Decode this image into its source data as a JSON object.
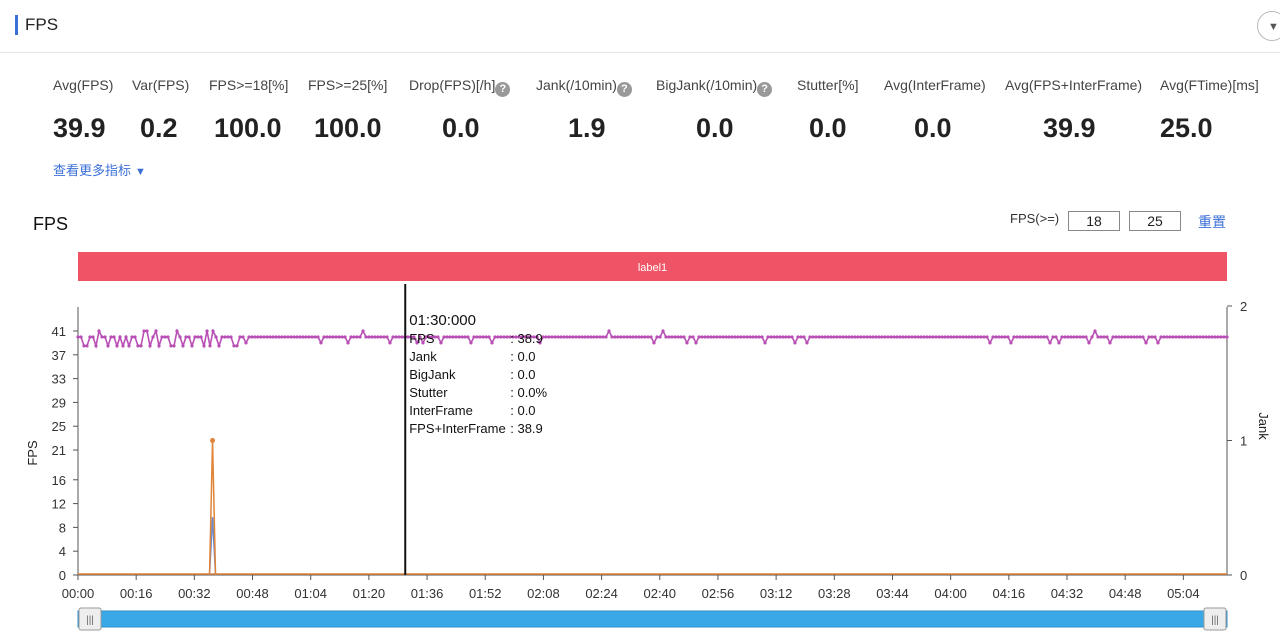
{
  "header": {
    "title": "FPS"
  },
  "metrics": [
    {
      "label": "Avg(FPS)",
      "value": "39.9",
      "help": false
    },
    {
      "label": "Var(FPS)",
      "value": "0.2",
      "help": false
    },
    {
      "label": "FPS>=18[%]",
      "value": "100.0",
      "help": false
    },
    {
      "label": "FPS>=25[%]",
      "value": "100.0",
      "help": false
    },
    {
      "label": "Drop(FPS)[/h]",
      "value": "0.0",
      "help": true
    },
    {
      "label": "Jank(/10min)",
      "value": "1.9",
      "help": true
    },
    {
      "label": "BigJank(/10min)",
      "value": "0.0",
      "help": true
    },
    {
      "label": "Stutter[%]",
      "value": "0.0",
      "help": false
    },
    {
      "label": "Avg(InterFrame)",
      "value": "0.0",
      "help": false
    },
    {
      "label": "Avg(FPS+InterFrame)",
      "value": "39.9",
      "help": false
    },
    {
      "label": "Avg(FTime)[ms]",
      "value": "25.0",
      "help": false
    }
  ],
  "more_metrics_label": "查看更多指标",
  "chart_section": {
    "title": "FPS",
    "threshold_label": "FPS(>=)",
    "threshold_low": "18",
    "threshold_high": "25",
    "reset_label": "重置"
  },
  "chart_data": {
    "type": "line",
    "label_band": "label1",
    "x_tick_labels": [
      "00:00",
      "00:16",
      "00:32",
      "00:48",
      "01:04",
      "01:20",
      "01:36",
      "01:52",
      "02:08",
      "02:24",
      "02:40",
      "02:56",
      "03:12",
      "03:28",
      "03:44",
      "04:00",
      "04:16",
      "04:32",
      "04:48",
      "05:04"
    ],
    "x_range_seconds": [
      0,
      316
    ],
    "y_left": {
      "label": "FPS",
      "ticks": [
        0,
        4,
        8,
        12,
        16,
        21,
        25,
        29,
        33,
        37,
        41
      ],
      "range": [
        0,
        41
      ]
    },
    "y_right": {
      "label": "Jank",
      "ticks": [
        0,
        1,
        2
      ],
      "range": [
        0,
        2
      ]
    },
    "series": [
      {
        "name": "FPS",
        "color": "#b84fb5",
        "axis": "left",
        "baseline": 40,
        "description_values": [
          40,
          39,
          41,
          38
        ]
      },
      {
        "name": "Jank",
        "color": "#e0843a",
        "axis": "right",
        "spikes": [
          {
            "x_seconds": 37,
            "value": 1.0
          }
        ]
      },
      {
        "name": "BigJank",
        "color": "#6a8bd0",
        "axis": "right",
        "spikes": [
          {
            "x_seconds": 37,
            "value": 0.43
          }
        ]
      }
    ],
    "cursor": {
      "x_seconds": 90,
      "time": "01:30:000",
      "rows": [
        {
          "key": "FPS",
          "value": ": 38.9"
        },
        {
          "key": "Jank",
          "value": ": 0.0"
        },
        {
          "key": "BigJank",
          "value": ": 0.0"
        },
        {
          "key": "Stutter",
          "value": ": 0.0%"
        },
        {
          "key": "InterFrame",
          "value": ": 0.0"
        },
        {
          "key": "FPS+InterFrame",
          "value": ": 38.9"
        }
      ]
    },
    "zoom_range": [
      0,
      1
    ]
  }
}
